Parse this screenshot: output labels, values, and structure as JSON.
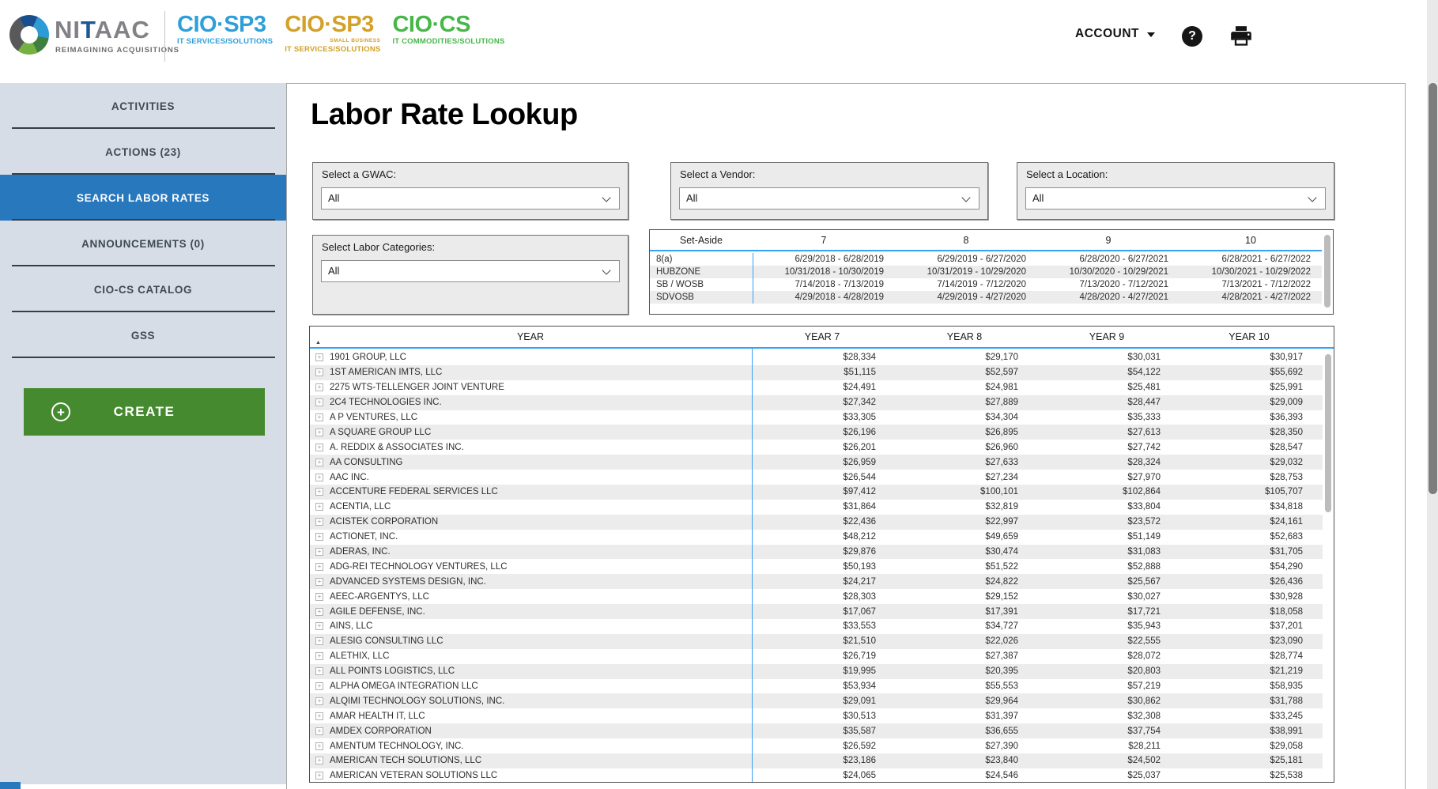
{
  "header": {
    "logo": {
      "text_gray_prefix": "NI",
      "text_blue": "T",
      "text_gray_suffix": "AAC",
      "tagline": "REIMAGINING ACQUISITIONS"
    },
    "products": [
      {
        "title": "CIO·SP3",
        "superscript": "",
        "subtitle": "IT SERVICES/SOLUTIONS",
        "color": "#2e9fd8"
      },
      {
        "title": "CIO·SP3",
        "superscript": "SMALL BUSINESS",
        "subtitle": "IT SERVICES/SOLUTIONS",
        "color": "#d2a128"
      },
      {
        "title": "CIO·CS",
        "superscript": "",
        "subtitle": "IT COMMODITIES/SOLUTIONS",
        "color": "#47b749"
      }
    ],
    "account_label": "ACCOUNT"
  },
  "icons": {
    "help": "?",
    "create_plus": "+",
    "expand": "+",
    "sort_ascending": "▲"
  },
  "sidebar": {
    "items": [
      {
        "label": "ACTIVITIES",
        "active": false
      },
      {
        "label": "ACTIONS (23)",
        "active": false
      },
      {
        "label": "SEARCH LABOR RATES",
        "active": true
      },
      {
        "label": "ANNOUNCEMENTS (0)",
        "active": false
      },
      {
        "label": "CIO-CS CATALOG",
        "active": false
      },
      {
        "label": "GSS",
        "active": false
      }
    ],
    "create_label": "CREATE"
  },
  "main": {
    "title": "Labor Rate Lookup",
    "filters": [
      {
        "label": "Select a GWAC:",
        "value": "All"
      },
      {
        "label": "Select a Vendor:",
        "value": "All"
      },
      {
        "label": "Select a Location:",
        "value": "All"
      },
      {
        "label": "Select Labor Categories:",
        "value": "All"
      }
    ],
    "set_aside_table": {
      "columns": [
        "Set-Aside",
        "7",
        "8",
        "9",
        "10"
      ],
      "rows": [
        [
          "8(a)",
          "6/29/2018 - 6/28/2019",
          "6/29/2019 - 6/27/2020",
          "6/28/2020 - 6/27/2021",
          "6/28/2021 - 6/27/2022"
        ],
        [
          "HUBZONE",
          "10/31/2018 - 10/30/2019",
          "10/31/2019 - 10/29/2020",
          "10/30/2020 - 10/29/2021",
          "10/30/2021 - 10/29/2022"
        ],
        [
          "SB / WOSB",
          "7/14/2018 - 7/13/2019",
          "7/14/2019 - 7/12/2020",
          "7/13/2020 - 7/12/2021",
          "7/13/2021 - 7/12/2022"
        ],
        [
          "SDVOSB",
          "4/29/2018 - 4/28/2019",
          "4/29/2019 - 4/27/2020",
          "4/28/2020 - 4/27/2021",
          "4/28/2021 - 4/27/2022"
        ]
      ]
    },
    "rates_table": {
      "columns": [
        "YEAR",
        "YEAR 7",
        "YEAR 8",
        "YEAR 9",
        "YEAR 10"
      ],
      "sort_column": "YEAR",
      "sort_direction": "ascending",
      "rows": [
        [
          "1901 GROUP, LLC",
          "$28,334",
          "$29,170",
          "$30,031",
          "$30,917"
        ],
        [
          "1ST AMERICAN IMTS, LLC",
          "$51,115",
          "$52,597",
          "$54,122",
          "$55,692"
        ],
        [
          "2275 WTS-TELLENGER JOINT VENTURE",
          "$24,491",
          "$24,981",
          "$25,481",
          "$25,991"
        ],
        [
          "2C4 TECHNOLOGIES INC.",
          "$27,342",
          "$27,889",
          "$28,447",
          "$29,009"
        ],
        [
          "A P VENTURES, LLC",
          "$33,305",
          "$34,304",
          "$35,333",
          "$36,393"
        ],
        [
          "A SQUARE GROUP LLC",
          "$26,196",
          "$26,895",
          "$27,613",
          "$28,350"
        ],
        [
          "A. REDDIX & ASSOCIATES INC.",
          "$26,201",
          "$26,960",
          "$27,742",
          "$28,547"
        ],
        [
          "AA CONSULTING",
          "$26,959",
          "$27,633",
          "$28,324",
          "$29,032"
        ],
        [
          "AAC INC.",
          "$26,544",
          "$27,234",
          "$27,970",
          "$28,753"
        ],
        [
          "ACCENTURE FEDERAL SERVICES LLC",
          "$97,412",
          "$100,101",
          "$102,864",
          "$105,707"
        ],
        [
          "ACENTIA, LLC",
          "$31,864",
          "$32,819",
          "$33,804",
          "$34,818"
        ],
        [
          "ACISTEK CORPORATION",
          "$22,436",
          "$22,997",
          "$23,572",
          "$24,161"
        ],
        [
          "ACTIONET, INC.",
          "$48,212",
          "$49,659",
          "$51,149",
          "$52,683"
        ],
        [
          "ADERAS, INC.",
          "$29,876",
          "$30,474",
          "$31,083",
          "$31,705"
        ],
        [
          "ADG-REI TECHNOLOGY VENTURES, LLC",
          "$50,193",
          "$51,522",
          "$52,888",
          "$54,290"
        ],
        [
          "ADVANCED SYSTEMS DESIGN, INC.",
          "$24,217",
          "$24,822",
          "$25,567",
          "$26,436"
        ],
        [
          "AEEC-ARGENTYS, LLC",
          "$28,303",
          "$29,152",
          "$30,027",
          "$30,928"
        ],
        [
          "AGILE DEFENSE, INC.",
          "$17,067",
          "$17,391",
          "$17,721",
          "$18,058"
        ],
        [
          "AINS, LLC",
          "$33,553",
          "$34,727",
          "$35,943",
          "$37,201"
        ],
        [
          "ALESIG CONSULTING LLC",
          "$21,510",
          "$22,026",
          "$22,555",
          "$23,090"
        ],
        [
          "ALETHIX, LLC",
          "$26,719",
          "$27,387",
          "$28,072",
          "$28,774"
        ],
        [
          "ALL POINTS LOGISTICS, LLC",
          "$19,995",
          "$20,395",
          "$20,803",
          "$21,219"
        ],
        [
          "ALPHA OMEGA INTEGRATION LLC",
          "$53,934",
          "$55,553",
          "$57,219",
          "$58,935"
        ],
        [
          "ALQIMI TECHNOLOGY SOLUTIONS, INC.",
          "$29,091",
          "$29,964",
          "$30,862",
          "$31,788"
        ],
        [
          "AMAR HEALTH IT, LLC",
          "$30,513",
          "$31,397",
          "$32,308",
          "$33,245"
        ],
        [
          "AMDEX CORPORATION",
          "$35,587",
          "$36,655",
          "$37,754",
          "$38,991"
        ],
        [
          "AMENTUM TECHNOLOGY, INC.",
          "$26,592",
          "$27,390",
          "$28,211",
          "$29,058"
        ],
        [
          "AMERICAN TECH SOLUTIONS, LLC",
          "$23,186",
          "$23,840",
          "$24,502",
          "$25,181"
        ],
        [
          "AMERICAN VETERAN SOLUTIONS LLC",
          "$24,065",
          "$24,546",
          "$25,037",
          "$25,538"
        ]
      ]
    }
  },
  "colors": {
    "accent_blue_line": "#36a1f6",
    "active_nav_blue": "#2878be",
    "create_green": "#458a2e",
    "sidebar_background": "#d7dde6"
  }
}
